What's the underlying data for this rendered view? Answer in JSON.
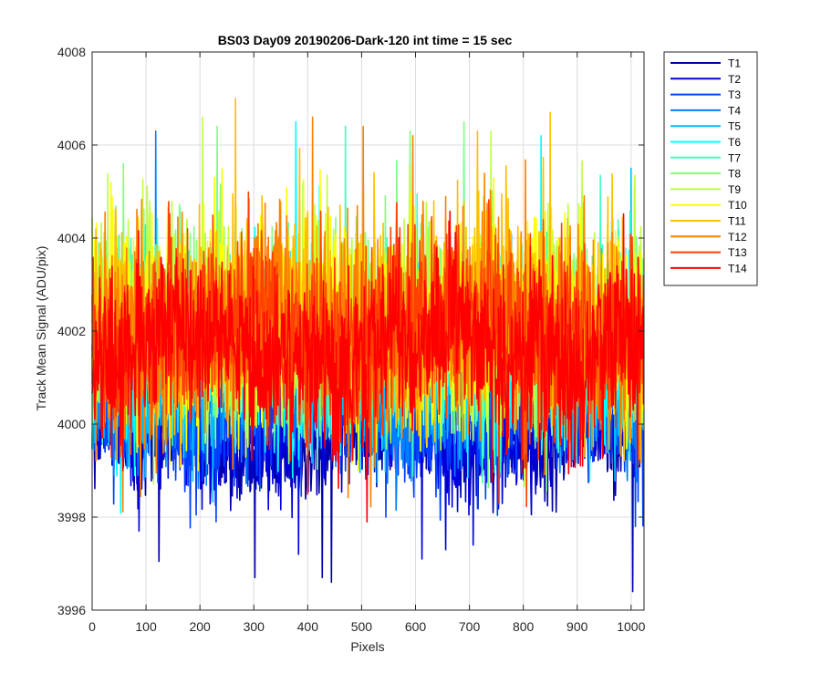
{
  "chart_data": {
    "type": "line",
    "title": "BS03 Day09 20190206-Dark-120 int time = 15 sec",
    "xlabel": "Pixels",
    "ylabel": "Track Mean Signal (ADU/pix)",
    "xlim": [
      0,
      1024
    ],
    "ylim": [
      3996,
      4008
    ],
    "xticks": [
      0,
      100,
      200,
      300,
      400,
      500,
      600,
      700,
      800,
      900,
      1000
    ],
    "yticks": [
      3996,
      3998,
      4000,
      4002,
      4004,
      4006,
      4008
    ],
    "grid": true,
    "legend_position": "outside-top-right",
    "x_points": 1024,
    "series": [
      {
        "name": "T1",
        "color": "#0000aa",
        "baseline": 3999.7,
        "spread": 0.55,
        "spikes": [
          [
            124,
            3997.05
          ],
          [
            302,
            3996.7
          ],
          [
            427,
            3996.7
          ],
          [
            444,
            3996.6
          ],
          [
            1003,
            3996.4
          ]
        ]
      },
      {
        "name": "T2",
        "color": "#0000dd",
        "baseline": 3999.9,
        "spread": 0.6,
        "spikes": [
          [
            87,
            3997.7
          ],
          [
            383,
            3997.2
          ],
          [
            612,
            3997.1
          ],
          [
            656,
            3997.3
          ],
          [
            707,
            3997.4
          ]
        ]
      },
      {
        "name": "T3",
        "color": "#0040ff",
        "baseline": 4000.4,
        "spread": 0.7,
        "spikes": [
          [
            230,
            3997.9
          ],
          [
            545,
            3998.0
          ],
          [
            1008,
            3997.8
          ]
        ]
      },
      {
        "name": "T4",
        "color": "#0080ff",
        "baseline": 4000.9,
        "spread": 0.8,
        "spikes": [
          [
            118,
            4006.3
          ],
          [
            40,
            3998.9
          ]
        ]
      },
      {
        "name": "T5",
        "color": "#00bfff",
        "baseline": 4001.3,
        "spread": 0.9,
        "spikes": [
          [
            1000,
            4005.5
          ]
        ]
      },
      {
        "name": "T6",
        "color": "#00ffff",
        "baseline": 4001.6,
        "spread": 0.95,
        "spikes": [
          [
            378,
            4006.5
          ],
          [
            690,
            4006.0
          ],
          [
            833,
            4006.2
          ]
        ]
      },
      {
        "name": "T7",
        "color": "#40ffbf",
        "baseline": 4001.8,
        "spread": 1.0,
        "spikes": [
          [
            470,
            4006.4
          ]
        ]
      },
      {
        "name": "T8",
        "color": "#80ff80",
        "baseline": 4002.0,
        "spread": 1.05,
        "spikes": [
          [
            58,
            4005.6
          ],
          [
            232,
            4006.4
          ],
          [
            590,
            4006.3
          ],
          [
            690,
            4006.5
          ]
        ]
      },
      {
        "name": "T9",
        "color": "#bfff40",
        "baseline": 4002.1,
        "spread": 1.05,
        "spikes": [
          [
            205,
            4006.6
          ],
          [
            740,
            4006.3
          ]
        ]
      },
      {
        "name": "T10",
        "color": "#ffff00",
        "baseline": 4002.2,
        "spread": 1.1,
        "spikes": [
          [
            35,
            4005.2
          ]
        ]
      },
      {
        "name": "T11",
        "color": "#ffbf00",
        "baseline": 4002.2,
        "spread": 1.1,
        "spikes": [
          [
            266,
            4007.0
          ],
          [
            850,
            4006.7
          ],
          [
            715,
            4006.3
          ]
        ]
      },
      {
        "name": "T12",
        "color": "#ff8000",
        "baseline": 4002.1,
        "spread": 1.05,
        "spikes": [
          [
            409,
            4006.6
          ],
          [
            503,
            4006.4
          ],
          [
            595,
            4006.2
          ]
        ]
      },
      {
        "name": "T13",
        "color": "#ff4000",
        "baseline": 4002.0,
        "spread": 1.0,
        "spikes": [
          [
            52,
            3999.3
          ],
          [
            755,
            3998.3
          ]
        ]
      },
      {
        "name": "T14",
        "color": "#ff0000",
        "baseline": 4001.6,
        "spread": 0.95,
        "spikes": [
          [
            57,
            3999.0
          ],
          [
            910,
            3999.1
          ]
        ]
      }
    ]
  }
}
